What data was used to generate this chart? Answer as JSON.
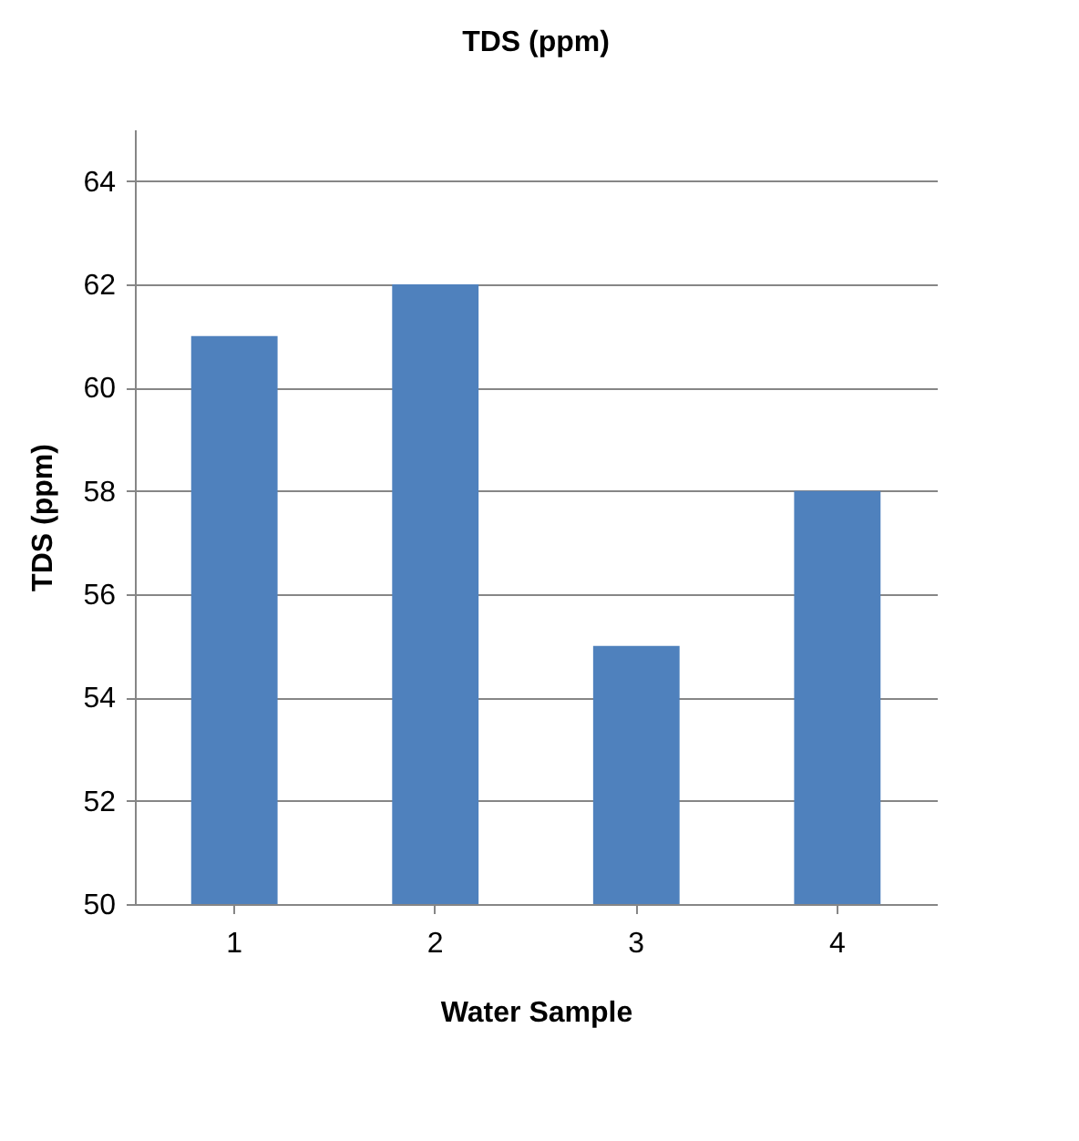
{
  "chart_data": {
    "type": "bar",
    "title": "TDS (ppm)",
    "xlabel": "Water Sample",
    "ylabel": "TDS (ppm)",
    "categories": [
      "1",
      "2",
      "3",
      "4"
    ],
    "values": [
      61,
      62,
      55,
      58
    ],
    "color": "#4f81bd",
    "ylim": [
      50,
      65
    ],
    "yticks": [
      50,
      52,
      54,
      56,
      58,
      60,
      62,
      64
    ],
    "grid": "y"
  }
}
